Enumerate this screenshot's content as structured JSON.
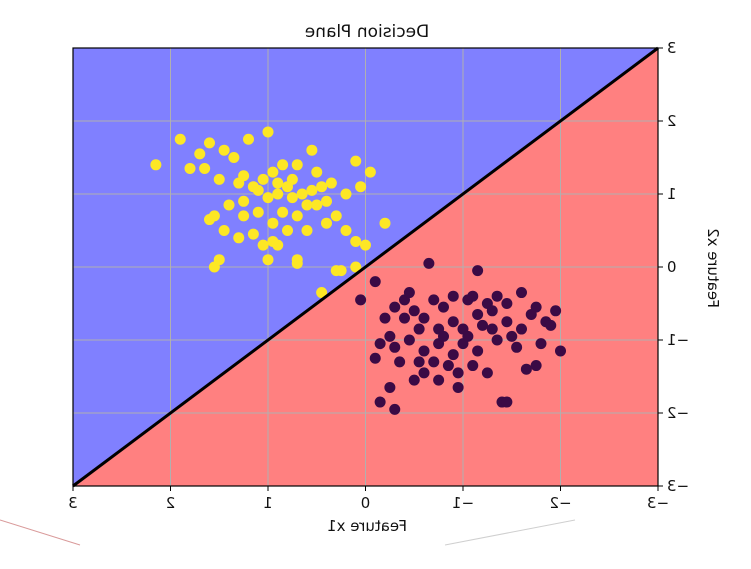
{
  "chart_data": {
    "type": "scatter",
    "title": "Decision Plane",
    "xlabel": "Feature x1",
    "ylabel": "Feature x2",
    "xlim": [
      -3,
      3
    ],
    "ylim": [
      -3,
      3
    ],
    "x_axis_direction": "reversed",
    "y_axis_position": "right",
    "grid": true,
    "mirrored_text": true,
    "x_ticks": [
      3,
      2,
      1,
      0,
      -1,
      -2,
      -3
    ],
    "x_tick_labels": [
      "3",
      "2",
      "1",
      "0",
      "−1",
      "−2",
      "−3"
    ],
    "y_ticks": [
      3,
      2,
      1,
      0,
      -1,
      -2,
      -3
    ],
    "y_tick_labels": [
      "3",
      "2",
      "1",
      "0",
      "−1",
      "−2",
      "−3"
    ],
    "decision_boundary": {
      "slope": -1,
      "intercept": 0,
      "color": "#000000"
    },
    "regions": [
      {
        "side": "above-boundary",
        "color": "#8080ff"
      },
      {
        "side": "below-boundary",
        "color": "#ff8080"
      }
    ],
    "series": [
      {
        "color": "#fde725",
        "points": [
          [
            2.15,
            1.4
          ],
          [
            1.9,
            1.75
          ],
          [
            1.8,
            1.35
          ],
          [
            1.7,
            1.55
          ],
          [
            1.65,
            1.35
          ],
          [
            1.6,
            1.7
          ],
          [
            1.5,
            1.2
          ],
          [
            1.45,
            1.6
          ],
          [
            1.35,
            1.5
          ],
          [
            1.3,
            1.15
          ],
          [
            1.25,
            1.25
          ],
          [
            1.2,
            1.75
          ],
          [
            1.15,
            1.1
          ],
          [
            1.05,
            1.2
          ],
          [
            1.0,
            1.85
          ],
          [
            0.95,
            1.3
          ],
          [
            0.9,
            1.0
          ],
          [
            0.85,
            1.4
          ],
          [
            0.8,
            1.1
          ],
          [
            0.75,
            1.2
          ],
          [
            0.7,
            1.4
          ],
          [
            0.65,
            1.0
          ],
          [
            0.55,
            1.6
          ],
          [
            0.5,
            1.3
          ],
          [
            0.45,
            1.1
          ],
          [
            0.35,
            1.15
          ],
          [
            0.2,
            1.0
          ],
          [
            0.1,
            1.45
          ],
          [
            0.05,
            1.1
          ],
          [
            -0.05,
            1.3
          ],
          [
            1.55,
            0.7
          ],
          [
            1.6,
            0.65
          ],
          [
            1.45,
            0.5
          ],
          [
            1.4,
            0.85
          ],
          [
            1.3,
            0.4
          ],
          [
            1.25,
            0.7
          ],
          [
            1.15,
            0.45
          ],
          [
            1.1,
            0.75
          ],
          [
            1.05,
            0.3
          ],
          [
            0.95,
            0.6
          ],
          [
            0.9,
            0.3
          ],
          [
            0.85,
            0.75
          ],
          [
            0.8,
            0.5
          ],
          [
            0.7,
            0.7
          ],
          [
            0.6,
            0.5
          ],
          [
            0.5,
            0.85
          ],
          [
            0.4,
            0.6
          ],
          [
            0.3,
            0.7
          ],
          [
            0.2,
            0.5
          ],
          [
            0.1,
            0.35
          ],
          [
            0.0,
            0.3
          ],
          [
            -0.2,
            0.6
          ],
          [
            1.55,
            0.0
          ],
          [
            1.5,
            0.1
          ],
          [
            1.0,
            0.1
          ],
          [
            0.95,
            0.35
          ],
          [
            0.7,
            0.1
          ],
          [
            0.7,
            0.05
          ],
          [
            0.3,
            -0.05
          ],
          [
            0.25,
            -0.05
          ],
          [
            0.45,
            -0.35
          ],
          [
            0.1,
            0.0
          ],
          [
            1.25,
            0.9
          ],
          [
            1.0,
            0.95
          ],
          [
            0.75,
            0.95
          ],
          [
            0.6,
            0.85
          ],
          [
            0.4,
            0.9
          ],
          [
            1.1,
            1.05
          ],
          [
            0.9,
            1.15
          ],
          [
            0.55,
            1.05
          ]
        ]
      },
      {
        "color": "#3b0a45",
        "points": [
          [
            -0.65,
            0.05
          ],
          [
            -1.15,
            -0.05
          ],
          [
            -0.1,
            -0.2
          ],
          [
            0.05,
            -0.45
          ],
          [
            -0.3,
            -0.55
          ],
          [
            -0.4,
            -0.45
          ],
          [
            -0.5,
            -0.6
          ],
          [
            -0.7,
            -0.45
          ],
          [
            -0.8,
            -0.55
          ],
          [
            -0.9,
            -0.4
          ],
          [
            -1.05,
            -0.45
          ],
          [
            -1.1,
            -0.4
          ],
          [
            -1.25,
            -0.5
          ],
          [
            -1.3,
            -0.6
          ],
          [
            -1.45,
            -0.5
          ],
          [
            -1.6,
            -0.35
          ],
          [
            -1.75,
            -0.55
          ],
          [
            -1.85,
            -0.75
          ],
          [
            -1.9,
            -0.8
          ],
          [
            -1.95,
            -0.6
          ],
          [
            -0.2,
            -0.7
          ],
          [
            -0.4,
            -0.7
          ],
          [
            -0.6,
            -0.7
          ],
          [
            -0.75,
            -0.85
          ],
          [
            -0.9,
            -0.75
          ],
          [
            -1.0,
            -0.85
          ],
          [
            -1.15,
            -0.65
          ],
          [
            -1.3,
            -0.85
          ],
          [
            -1.45,
            -0.75
          ],
          [
            -1.6,
            -0.85
          ],
          [
            -0.15,
            -1.05
          ],
          [
            -0.3,
            -1.1
          ],
          [
            -0.45,
            -1.0
          ],
          [
            -0.6,
            -1.15
          ],
          [
            -0.75,
            -1.05
          ],
          [
            -0.9,
            -1.2
          ],
          [
            -1.0,
            -1.05
          ],
          [
            -1.15,
            -1.15
          ],
          [
            -1.35,
            -1.0
          ],
          [
            -1.55,
            -1.1
          ],
          [
            -0.1,
            -1.25
          ],
          [
            -0.35,
            -1.3
          ],
          [
            -0.55,
            -1.3
          ],
          [
            -0.7,
            -1.3
          ],
          [
            -0.85,
            -1.35
          ],
          [
            -0.95,
            -1.45
          ],
          [
            -1.1,
            -1.35
          ],
          [
            -1.25,
            -1.45
          ],
          [
            -1.65,
            -1.4
          ],
          [
            -1.75,
            -1.35
          ],
          [
            -0.25,
            -1.65
          ],
          [
            -0.5,
            -1.55
          ],
          [
            -0.75,
            -1.55
          ],
          [
            -0.95,
            -1.65
          ],
          [
            -0.15,
            -1.85
          ],
          [
            -0.3,
            -1.95
          ],
          [
            -1.4,
            -1.85
          ],
          [
            -1.45,
            -1.85
          ],
          [
            -2.0,
            -1.15
          ],
          [
            -1.05,
            -0.95
          ],
          [
            -0.25,
            -0.95
          ],
          [
            -0.55,
            -0.85
          ],
          [
            -0.8,
            -0.95
          ],
          [
            -1.2,
            -0.8
          ],
          [
            -1.5,
            -0.95
          ],
          [
            -1.8,
            -1.05
          ],
          [
            -0.6,
            -1.45
          ],
          [
            -0.45,
            -0.35
          ],
          [
            -1.35,
            -0.4
          ],
          [
            -1.7,
            -0.65
          ]
        ]
      }
    ]
  }
}
